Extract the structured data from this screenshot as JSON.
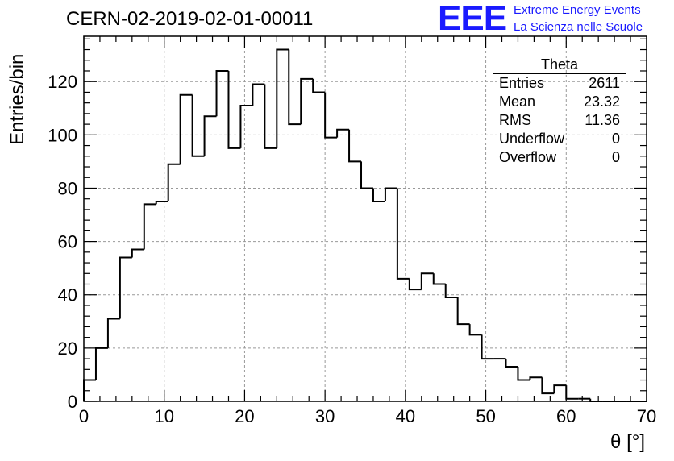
{
  "header": {
    "title": "CERN-02-2019-02-01-00011",
    "logo_mark": "EEE",
    "logo_line1": "Extreme Energy Events",
    "logo_line2": "La Scienza nelle Scuole"
  },
  "stats_box": {
    "title": "Theta",
    "rows": [
      {
        "label": "Entries",
        "value": "2611"
      },
      {
        "label": "Mean",
        "value": "23.32"
      },
      {
        "label": "RMS",
        "value": "11.36"
      },
      {
        "label": "Underflow",
        "value": "0"
      },
      {
        "label": "Overflow",
        "value": "0"
      }
    ]
  },
  "chart_data": {
    "type": "histogram",
    "xlabel": "θ [°]",
    "ylabel": "Entries/bin",
    "xlim": [
      0,
      70
    ],
    "ylim": [
      0,
      137
    ],
    "xticks": [
      0,
      10,
      20,
      30,
      40,
      50,
      60,
      70
    ],
    "yticks": [
      0,
      20,
      40,
      60,
      80,
      100,
      120
    ],
    "grid": true,
    "bin_width": 1.5,
    "bin_edges_start": 0,
    "values": [
      8,
      20,
      31,
      54,
      57,
      74,
      75,
      89,
      115,
      92,
      107,
      124,
      95,
      111,
      119,
      95,
      132,
      104,
      121,
      116,
      99,
      102,
      90,
      80,
      75,
      80,
      46,
      42,
      48,
      44,
      39,
      29,
      25,
      16,
      16,
      13,
      8,
      9,
      3,
      6,
      1,
      1,
      0,
      0,
      0,
      0,
      0
    ]
  }
}
